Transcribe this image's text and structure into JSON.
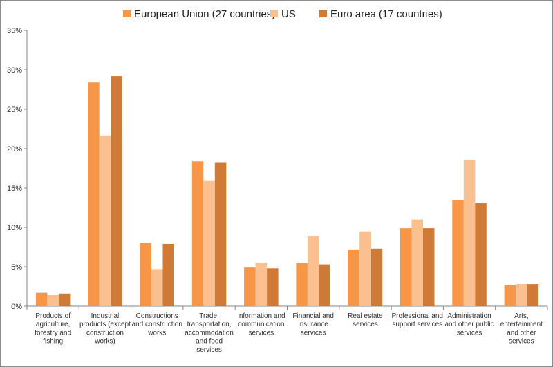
{
  "chart_data": {
    "type": "bar",
    "title": "",
    "xlabel": "",
    "ylabel": "",
    "ylim": [
      0,
      35
    ],
    "yticks": [
      0,
      5,
      10,
      15,
      20,
      25,
      30,
      35
    ],
    "ytick_labels": [
      "0%",
      "5%",
      "10%",
      "15%",
      "20%",
      "25%",
      "30%",
      "35%"
    ],
    "grid": false,
    "legend_position": "top-center",
    "categories": [
      [
        "Products of",
        "agriculture,",
        "forestry and",
        "fishing"
      ],
      [
        "Industrial",
        "products (except",
        "construction",
        "works)"
      ],
      [
        "Constructions",
        "and construction",
        "works"
      ],
      [
        "Trade,",
        "transportation,",
        "accommodation",
        "and food",
        "services"
      ],
      [
        "Information and",
        "communication",
        "services"
      ],
      [
        "Financial and",
        "insurance",
        "services"
      ],
      [
        "Real estate",
        "services"
      ],
      [
        "Professional and",
        "support services"
      ],
      [
        "Administration",
        "and other public",
        "services"
      ],
      [
        "Arts,",
        "entertainment",
        "and other",
        "services"
      ]
    ],
    "series": [
      {
        "name": "European Union (27 countries)",
        "color": "#f79646",
        "values": [
          1.7,
          28.4,
          8.0,
          18.4,
          4.9,
          5.5,
          7.2,
          9.9,
          13.5,
          2.7
        ]
      },
      {
        "name": "US",
        "color": "#fac090",
        "values": [
          1.4,
          21.6,
          4.7,
          15.9,
          5.5,
          8.9,
          9.5,
          11.0,
          18.6,
          2.8
        ]
      },
      {
        "name": "Euro area (17 countries)",
        "color": "#d07a38",
        "values": [
          1.6,
          29.2,
          7.9,
          18.2,
          4.8,
          5.3,
          7.3,
          9.9,
          13.1,
          2.8
        ]
      }
    ]
  }
}
